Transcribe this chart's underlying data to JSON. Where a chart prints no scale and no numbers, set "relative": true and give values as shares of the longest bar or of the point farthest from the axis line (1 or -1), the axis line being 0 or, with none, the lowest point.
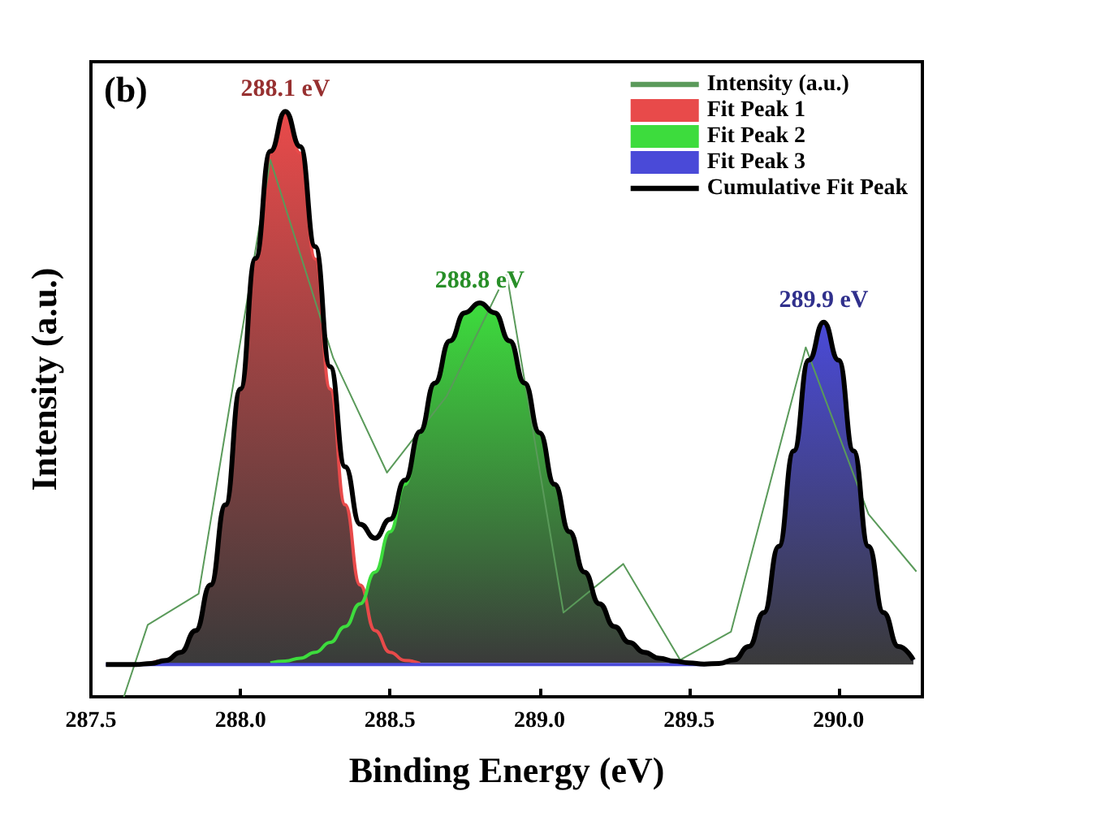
{
  "chart_data": {
    "type": "line",
    "relative": true,
    "xlabel": "Binding Energy (eV)",
    "ylabel": "Intensity (a.u.)",
    "xlim": [
      287.5,
      290.28
    ],
    "xticks": [
      287.5,
      {
        "value": 288,
        "label": "288.0"
      },
      288.5,
      {
        "value": 289,
        "label": "289.0"
      },
      289.5,
      {
        "value": 290,
        "label": "290.0"
      }
    ],
    "grid": false,
    "legend": "top right",
    "marker": "none",
    "line_style": "solid",
    "annotations": [
      "(b)",
      {
        "text": "288.1 eV",
        "x": 288.15,
        "y": 1.0
      },
      {
        "text": "288.8 eV",
        "x": 288.8,
        "y": 0.673
      },
      {
        "text": "289.9 eV",
        "x": 289.95,
        "y": 0.64
      }
    ],
    "series": [
      {
        "name": "Intensity (a.u.)",
        "color": "#5a9a5a",
        "x": [
          287.61,
          287.69,
          287.86,
          288.1,
          288.31,
          288.49,
          288.69,
          288.89,
          289.08,
          289.28,
          289.47,
          289.64,
          289.89,
          290.1,
          290.26
        ],
        "values": [
          0,
          0.123,
          0.176,
          0.917,
          0.579,
          0.383,
          0.514,
          0.723,
          0.144,
          0.227,
          0.063,
          0.111,
          0.597,
          0.312,
          0.214
        ]
      },
      {
        "name": "Fit Peak 1",
        "type": "area",
        "color": "#e84a4a",
        "x": [
          287.7,
          287.75,
          287.8,
          287.85,
          287.9,
          287.95,
          288.0,
          288.05,
          288.1,
          288.15,
          288.2,
          288.25,
          288.3,
          288.35,
          288.4,
          288.45,
          288.5,
          288.55,
          288.6
        ],
        "values": [
          0.057,
          0.062,
          0.076,
          0.113,
          0.191,
          0.328,
          0.526,
          0.748,
          0.929,
          0.994,
          0.929,
          0.748,
          0.526,
          0.328,
          0.191,
          0.113,
          0.076,
          0.062,
          0.057
        ]
      },
      {
        "name": "Fit Peak 2",
        "type": "area",
        "color": "#3ddc3d",
        "x": [
          288.1,
          288.15,
          288.2,
          288.25,
          288.3,
          288.35,
          288.4,
          288.45,
          288.5,
          288.55,
          288.6,
          288.65,
          288.7,
          288.75,
          288.8,
          288.85,
          288.9,
          288.95,
          289.0,
          289.05,
          289.1,
          289.15,
          289.2,
          289.25,
          289.3,
          289.35,
          289.4,
          289.45,
          289.5
        ],
        "values": [
          0.058,
          0.061,
          0.066,
          0.076,
          0.093,
          0.12,
          0.159,
          0.213,
          0.282,
          0.363,
          0.451,
          0.536,
          0.608,
          0.656,
          0.673,
          0.656,
          0.608,
          0.536,
          0.451,
          0.363,
          0.282,
          0.213,
          0.159,
          0.12,
          0.093,
          0.076,
          0.066,
          0.061,
          0.058
        ]
      },
      {
        "name": "Fit Peak 3",
        "type": "area",
        "color": "#4a4ad8",
        "x": [
          287.55,
          289.55,
          289.6,
          289.65,
          289.7,
          289.75,
          289.8,
          289.85,
          289.9,
          289.95,
          290.0,
          290.05,
          290.1,
          290.15,
          290.2,
          290.25
        ],
        "values": [
          0.055,
          0.055,
          0.057,
          0.063,
          0.086,
          0.144,
          0.257,
          0.42,
          0.575,
          0.64,
          0.575,
          0.42,
          0.257,
          0.144,
          0.086,
          0.063
        ]
      },
      {
        "name": "Cumulative Fit Peak",
        "color": "#000000",
        "x": [
          287.55,
          287.6,
          287.65,
          287.7,
          287.75,
          287.8,
          287.85,
          287.9,
          287.95,
          288.0,
          288.05,
          288.1,
          288.15,
          288.2,
          288.25,
          288.3,
          288.35,
          288.4,
          288.45,
          288.5,
          288.55,
          288.6,
          288.65,
          288.7,
          288.75,
          288.8,
          288.85,
          288.9,
          288.95,
          289.0,
          289.05,
          289.1,
          289.15,
          289.2,
          289.25,
          289.3,
          289.35,
          289.4,
          289.45,
          289.5,
          289.55,
          289.6,
          289.65,
          289.7,
          289.75,
          289.8,
          289.85,
          289.9,
          289.95,
          290.0,
          290.05,
          290.1,
          290.15,
          290.2,
          290.25
        ],
        "values": [
          0.055,
          0.055,
          0.055,
          0.057,
          0.062,
          0.076,
          0.113,
          0.191,
          0.328,
          0.526,
          0.749,
          0.932,
          1.0,
          0.94,
          0.769,
          0.564,
          0.393,
          0.295,
          0.271,
          0.303,
          0.37,
          0.453,
          0.536,
          0.608,
          0.656,
          0.673,
          0.656,
          0.608,
          0.536,
          0.451,
          0.363,
          0.282,
          0.213,
          0.159,
          0.12,
          0.093,
          0.076,
          0.066,
          0.061,
          0.058,
          0.056,
          0.057,
          0.063,
          0.086,
          0.144,
          0.257,
          0.42,
          0.575,
          0.64,
          0.575,
          0.42,
          0.257,
          0.144,
          0.086,
          0.063
        ]
      }
    ]
  }
}
